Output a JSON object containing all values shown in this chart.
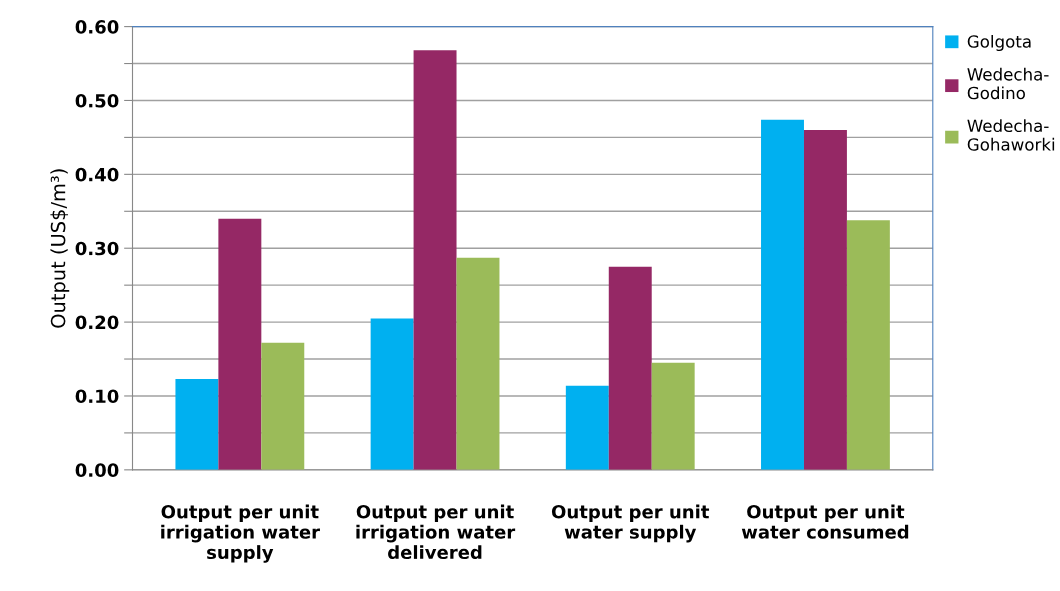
{
  "chart_data": {
    "type": "bar",
    "ylabel": "Output (US$/m³)",
    "categories": [
      "Output per unit\nirrigation water\nsupply",
      "Output per unit\nirrigation water\ndelivered",
      "Output per unit\nwater supply",
      "Output per unit\nwater consumed"
    ],
    "series": [
      {
        "name": "Golgota",
        "color": "#00b0f0",
        "values": [
          0.123,
          0.205,
          0.114,
          0.474
        ]
      },
      {
        "name": "Wedecha-\nGodino",
        "color": "#952865",
        "values": [
          0.34,
          0.568,
          0.275,
          0.46
        ]
      },
      {
        "name": "Wedecha-\nGohaworki",
        "color": "#9bbb59",
        "values": [
          0.172,
          0.287,
          0.145,
          0.338
        ]
      }
    ],
    "ylim": [
      0,
      0.6
    ],
    "yticks": [
      {
        "value": 0,
        "label": "0.00"
      },
      {
        "value": 0.05,
        "label": null
      },
      {
        "value": 0.1,
        "label": "0.10"
      },
      {
        "value": 0.15,
        "label": null
      },
      {
        "value": 0.2,
        "label": "0.20"
      },
      {
        "value": 0.25,
        "label": null
      },
      {
        "value": 0.3,
        "label": "0.30"
      },
      {
        "value": 0.35,
        "label": null
      },
      {
        "value": 0.4,
        "label": "0.40"
      },
      {
        "value": 0.45,
        "label": null
      },
      {
        "value": 0.5,
        "label": "0.50"
      },
      {
        "value": 0.55,
        "label": null
      },
      {
        "value": 0.6,
        "label": "0.60"
      }
    ],
    "grid": "y",
    "legend": "right"
  }
}
